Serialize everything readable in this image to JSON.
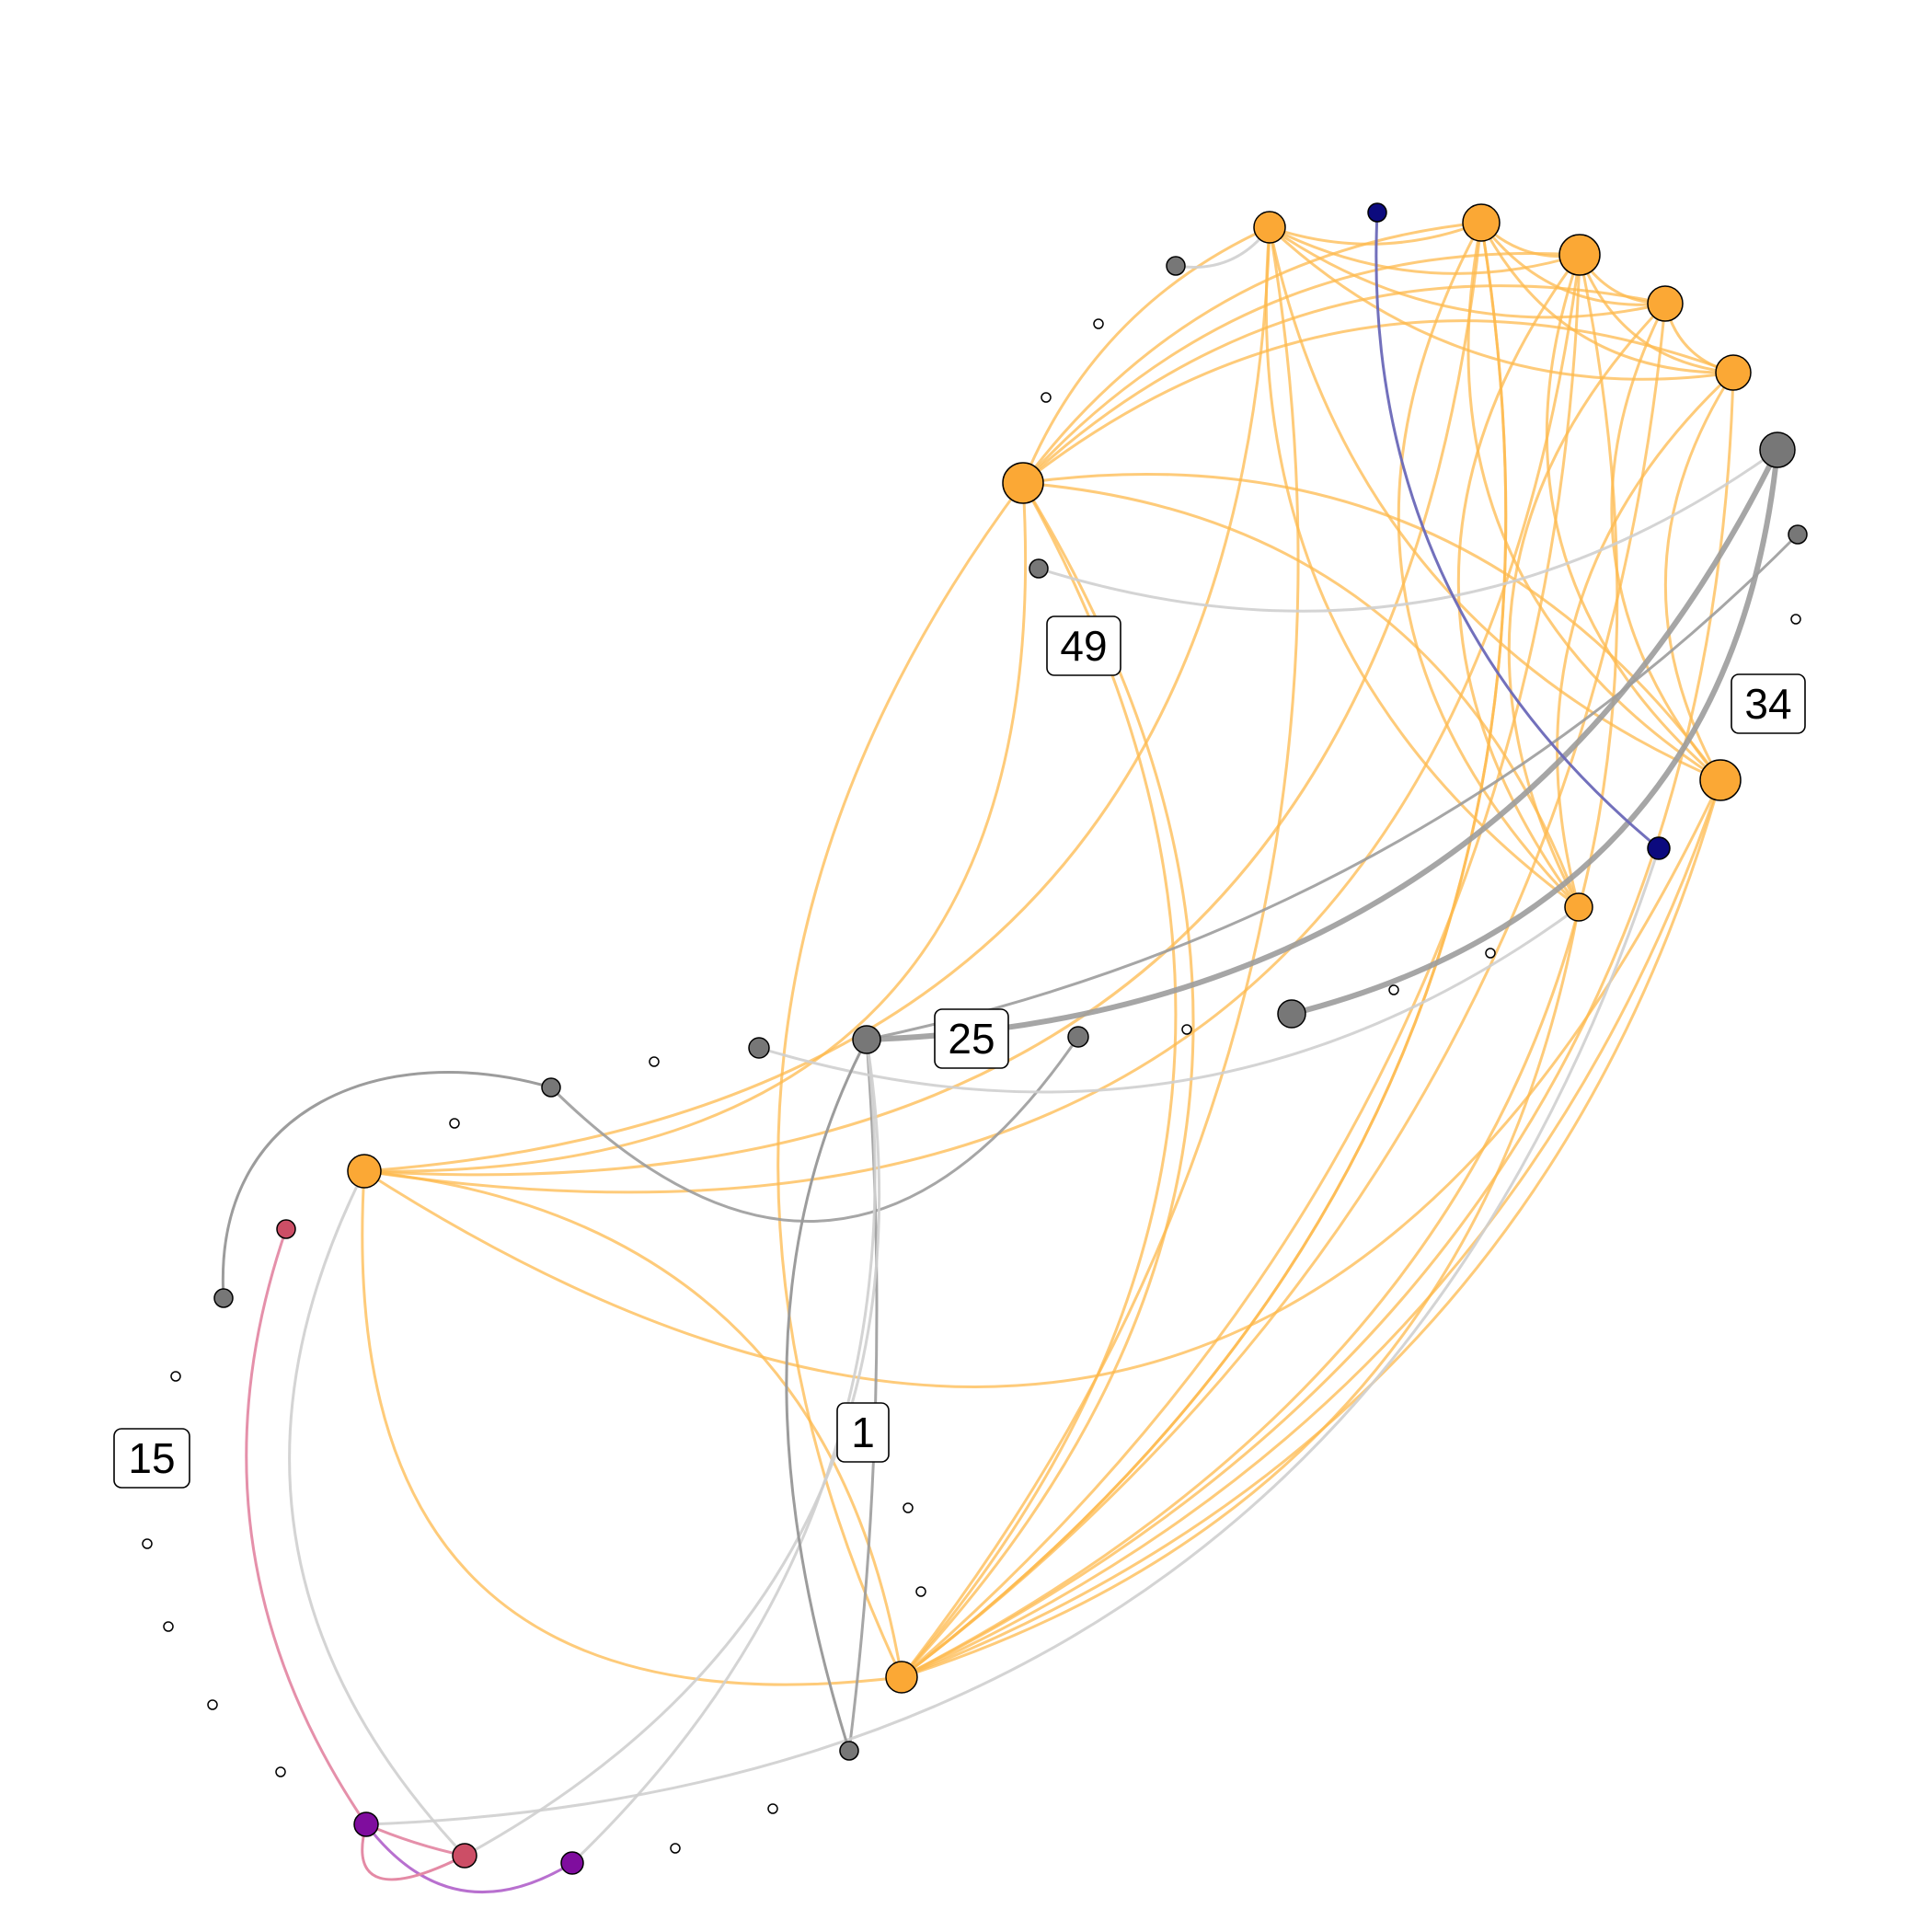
{
  "title": "",
  "colors": {
    "orange": "#FBA835",
    "orange_edge": "#FDB94E",
    "gray": "#777777",
    "gray_edge_dark": "#9C9C9C",
    "gray_edge_light": "#CFCFCF",
    "navy": "#0C0A7E",
    "navy_edge": "#6A68B8",
    "purple": "#7F0D9E",
    "purple_edge": "#B468CC",
    "rose": "#CC4E66",
    "rose_edge": "#E48AA5",
    "white": "#FFFFFF"
  },
  "labels": [
    {
      "id": "label-49",
      "text": "49"
    },
    {
      "id": "label-34",
      "text": "34"
    },
    {
      "id": "label-25",
      "text": "25"
    },
    {
      "id": "label-1",
      "text": "1"
    },
    {
      "id": "label-15",
      "text": "15"
    }
  ]
}
